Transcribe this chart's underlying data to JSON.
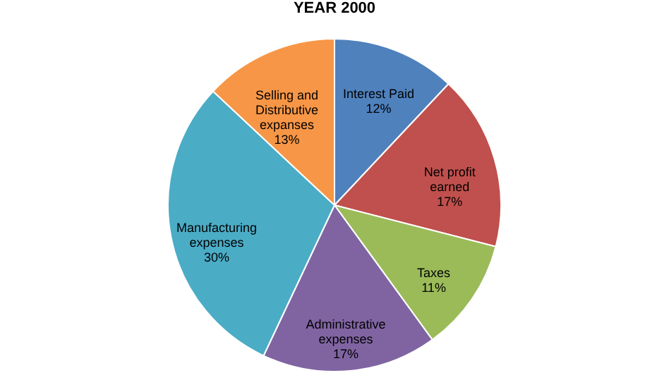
{
  "chart_data": {
    "type": "pie",
    "title": "YEAR 2000",
    "categories": [
      "Interest Paid",
      "Net profit earned",
      "Taxes",
      "Administrative expenses",
      "Manufacturing expenses",
      "Selling and Distributive expanses"
    ],
    "values": [
      12,
      17,
      11,
      17,
      30,
      13
    ],
    "colors": [
      "#4f81bd",
      "#c0504d",
      "#9bbb59",
      "#8064a2",
      "#4bacc6",
      "#f79646"
    ],
    "value_labels": [
      "12%",
      "17%",
      "11%",
      "17%",
      "30%",
      "13%"
    ],
    "legend": false
  }
}
